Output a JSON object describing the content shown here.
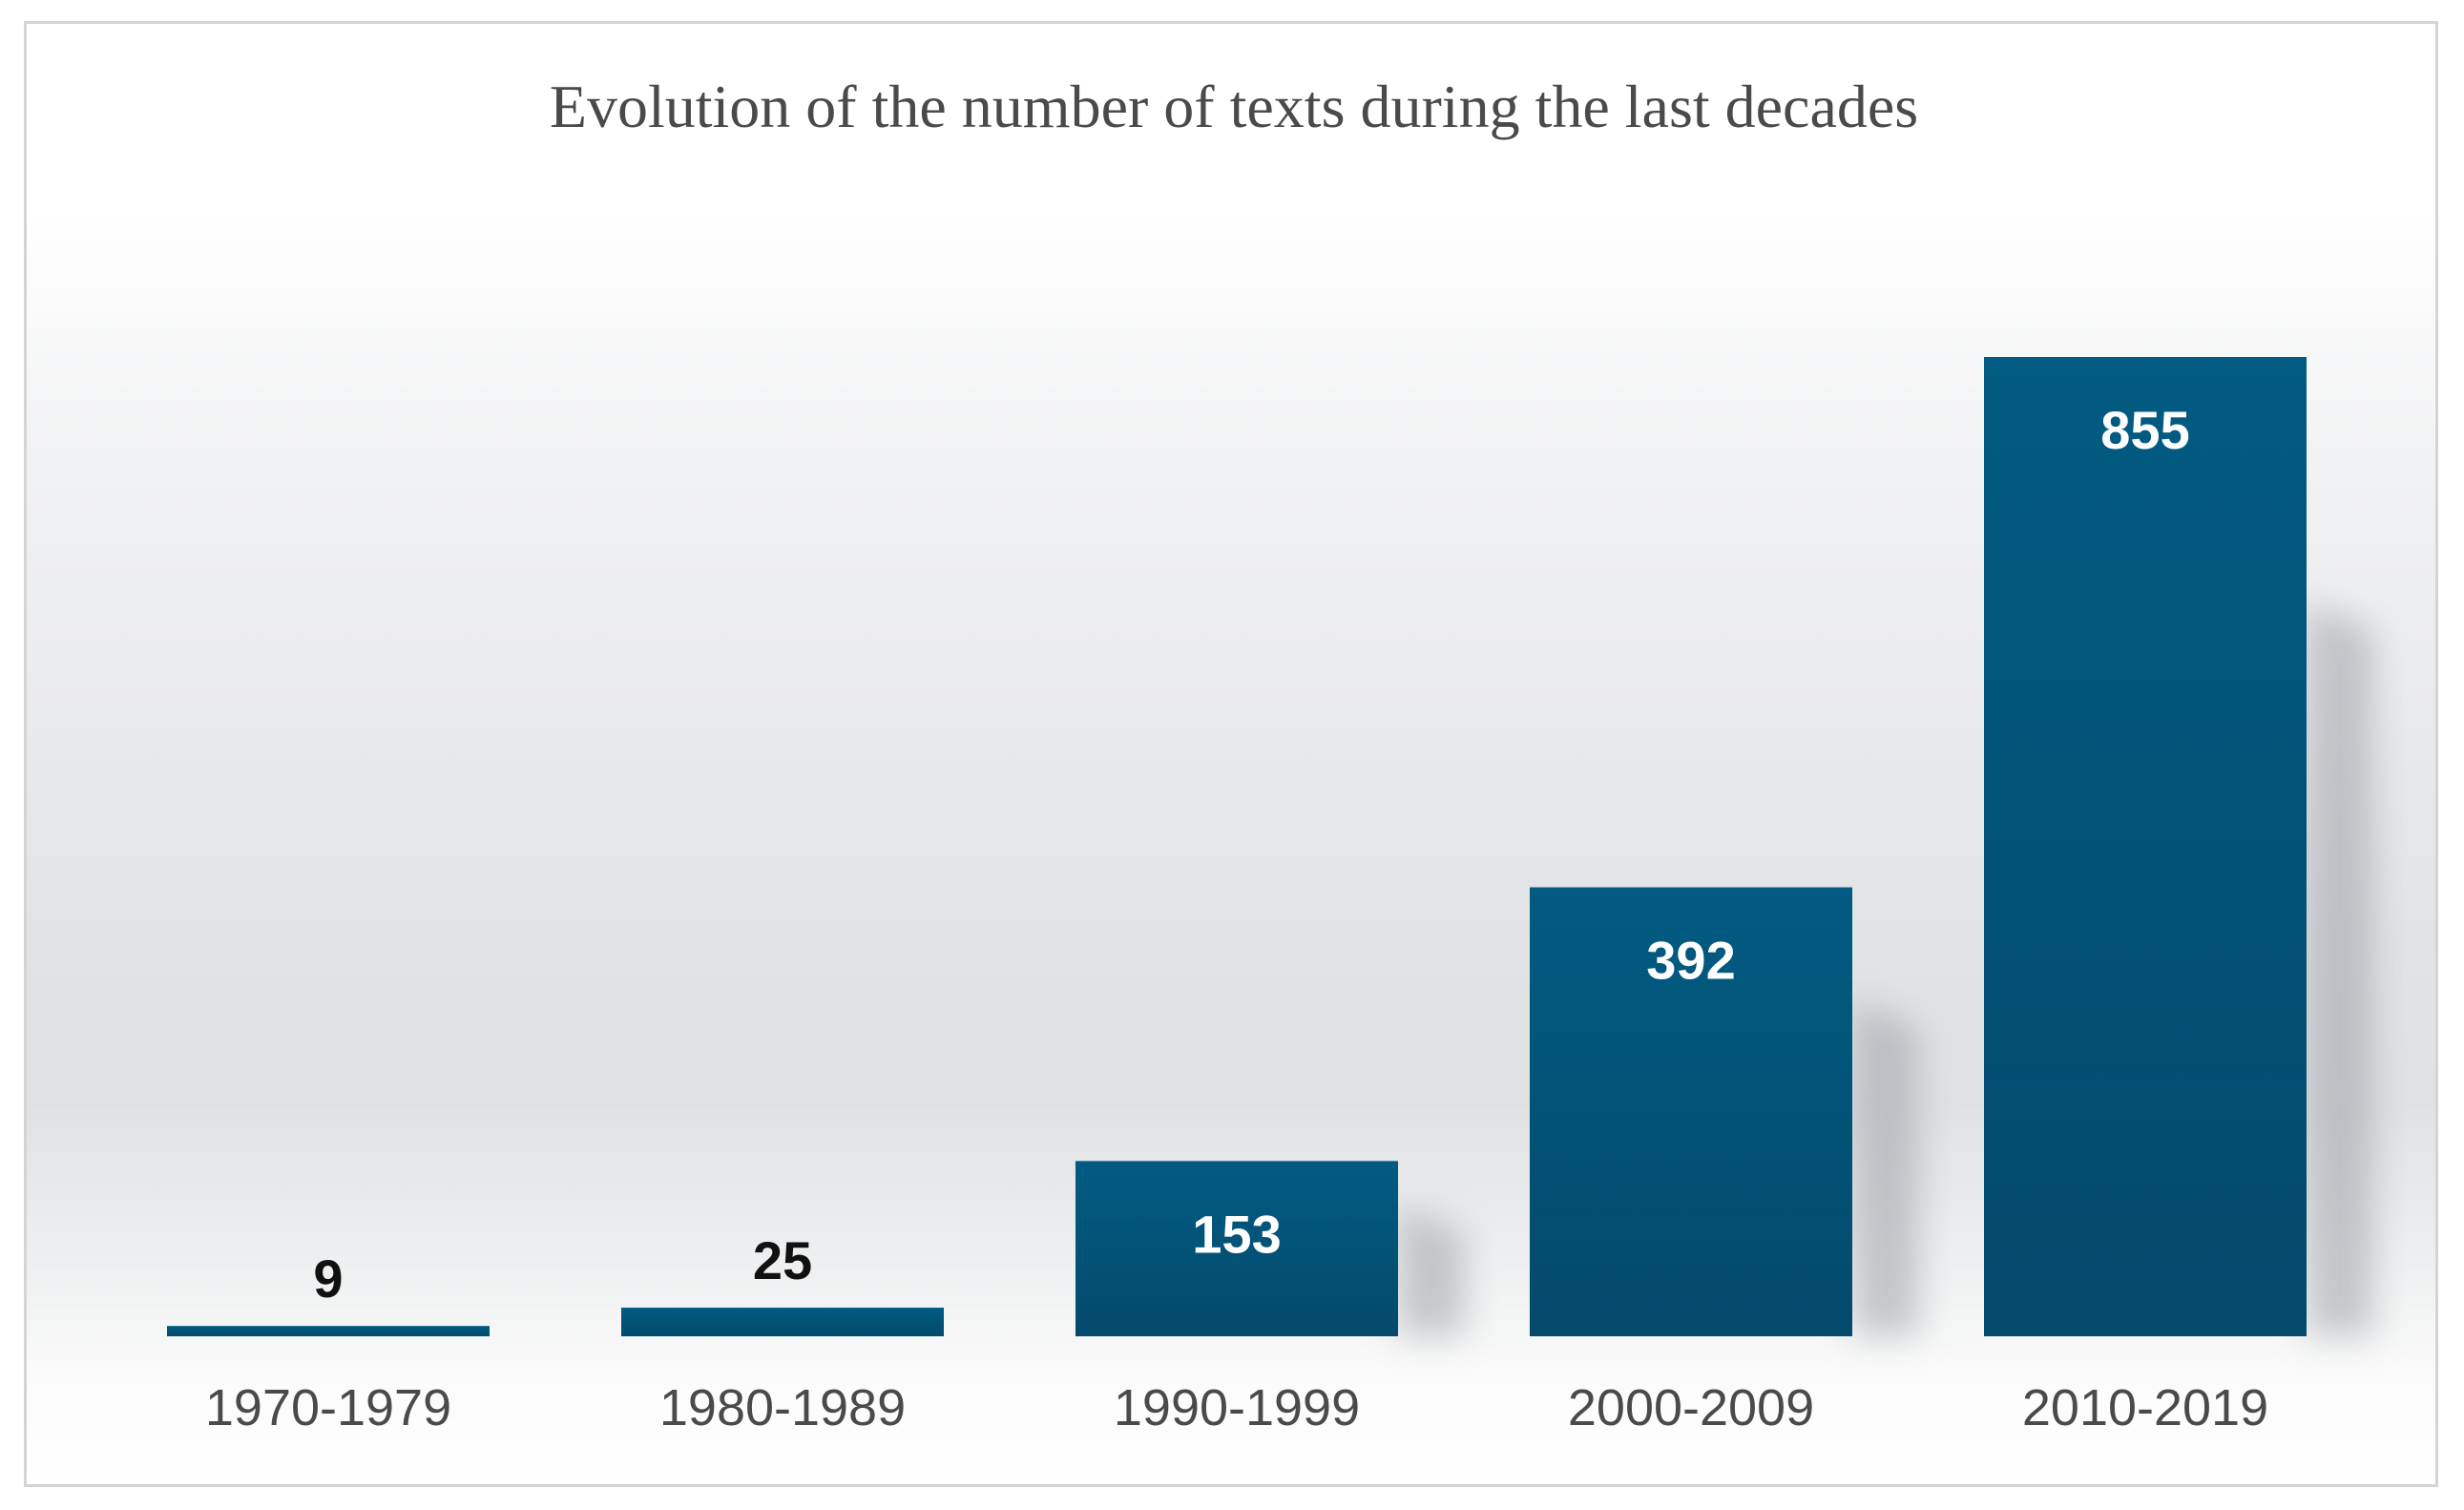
{
  "chart_data": {
    "type": "bar",
    "title": "Evolution of the number of texts during the last decades",
    "categories": [
      "1970-1979",
      "1980-1989",
      "1990-1999",
      "2000-2009",
      "2010-2019"
    ],
    "values": [
      9,
      25,
      153,
      392,
      855
    ],
    "data_labels": [
      "9",
      "25",
      "153",
      "392",
      "855"
    ],
    "xlabel": "",
    "ylabel": "",
    "ylim": [
      0,
      1000
    ],
    "grid": false,
    "legend": "none",
    "bar_color": "#025b82",
    "bar_color_dark": "#034a6c",
    "label_inside_color": "#ffffff",
    "label_outside_color": "#111111",
    "text_color": "#4a4a4a"
  }
}
